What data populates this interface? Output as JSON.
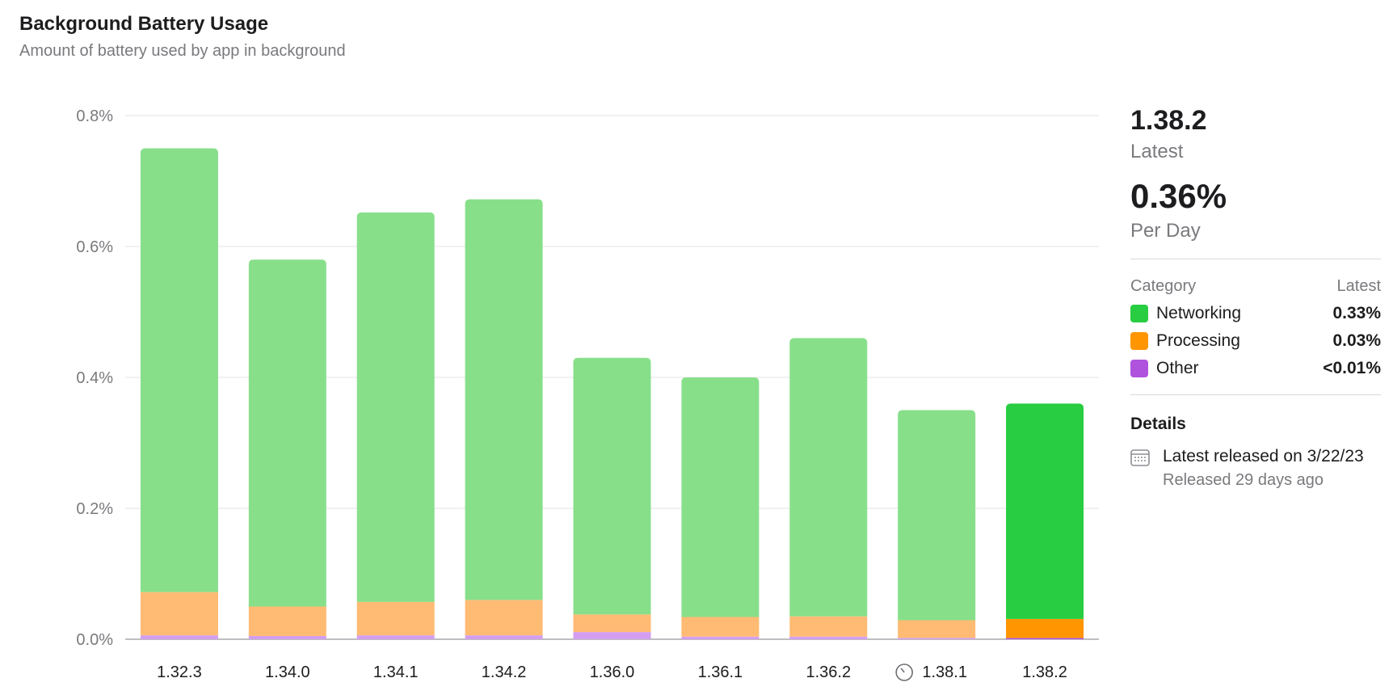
{
  "header": {
    "title": "Background Battery Usage",
    "subtitle": "Amount of battery used by app in background"
  },
  "panel": {
    "latest_version": "1.38.2",
    "latest_label": "Latest",
    "per_day_value": "0.36%",
    "per_day_label": "Per Day",
    "category_header": "Category",
    "latest_header": "Latest",
    "legend": [
      {
        "label": "Networking",
        "value": "0.33%",
        "color": "#28cd41"
      },
      {
        "label": "Processing",
        "value": "0.03%",
        "color": "#ff9500"
      },
      {
        "label": "Other",
        "value": "<0.01%",
        "color": "#af52de"
      }
    ],
    "details_title": "Details",
    "detail_main": "Latest released on 3/22/23",
    "detail_sub": "Released 29 days ago",
    "detail_icon": "calendar-icon"
  },
  "chart_data": {
    "type": "bar",
    "stacked": true,
    "categories": [
      "1.32.3",
      "1.34.0",
      "1.34.1",
      "1.34.2",
      "1.36.0",
      "1.36.1",
      "1.36.2",
      "1.38.1",
      "1.38.2"
    ],
    "marked_category": {
      "index": 7,
      "icon": "clock-icon"
    },
    "highlighted_category": "1.38.2",
    "series": [
      {
        "name": "Other",
        "values": [
          0.006,
          0.005,
          0.006,
          0.006,
          0.011,
          0.004,
          0.004,
          0.002,
          0.002
        ],
        "color": "#af52de",
        "faded_color": "#d49ef0"
      },
      {
        "name": "Processing",
        "values": [
          0.066,
          0.045,
          0.051,
          0.054,
          0.027,
          0.03,
          0.031,
          0.027,
          0.029
        ],
        "color": "#ff9500",
        "faded_color": "#ffbb73"
      },
      {
        "name": "Networking",
        "values": [
          0.678,
          0.53,
          0.595,
          0.612,
          0.392,
          0.366,
          0.425,
          0.321,
          0.329
        ],
        "color": "#28cd41",
        "faded_color": "#88df8a"
      }
    ],
    "ylim": [
      0,
      0.8
    ],
    "yticks": [
      "0.0%",
      "0.2%",
      "0.4%",
      "0.6%",
      "0.8%"
    ],
    "ytick_values": [
      0,
      0.2,
      0.4,
      0.6,
      0.8
    ],
    "grid": true
  }
}
